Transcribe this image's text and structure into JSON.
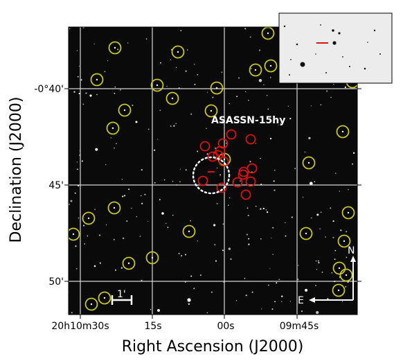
{
  "figure": {
    "target_label": "ASASSN-15hy",
    "x_axis_title": "Right Ascension (J2000)",
    "y_axis_title": "Declination (J2000)",
    "x_tick_labels": [
      "20h10m30s",
      "15s",
      "00s",
      "09m45s"
    ],
    "y_tick_labels": [
      "-0°40'",
      "45'",
      "50'"
    ],
    "scale_bar_label": "1'",
    "compass_north": "N",
    "compass_east": "E"
  },
  "colors": {
    "background": "#0a0a0a",
    "grid": "#d8d8d8",
    "yellow_circles": "#c8c820",
    "red_circles": "#e01010",
    "target_dotted_circle": "#ffffff",
    "inset_marker": "#e01010"
  },
  "legend_markers": {
    "yellow_circle_meaning": "",
    "red_circle_meaning": ""
  }
}
